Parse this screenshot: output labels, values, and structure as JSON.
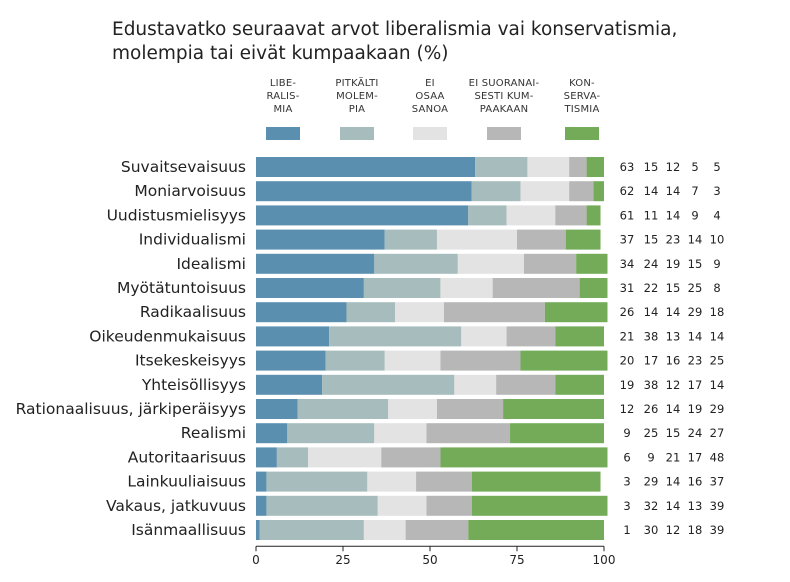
{
  "title": "Edustavatko seuraavat arvot liberalismia vai konservatismia, molempia tai eivät kumpaakaan (%)",
  "colors": [
    "#5b8fb0",
    "#a7bcbc",
    "#e3e3e3",
    "#b7b7b7",
    "#73ab58"
  ],
  "chart_data": {
    "type": "bar",
    "orientation": "horizontal",
    "stacked": true,
    "title": "Edustavatko seuraavat arvot liberalismia vai konservatismia, molempia tai eivät kumpaakaan (%)",
    "categories": [
      "Suvaitsevaisuus",
      "Moniarvoisuus",
      "Uudistusmielisyys",
      "Individualismi",
      "Idealismi",
      "Myötätuntoisuus",
      "Radikaalisuus",
      "Oikeudenmukaisuus",
      "Itsekeskeisyys",
      "Yhteisöllisyys",
      "Rationaalisuus, järkiperäisyys",
      "Realismi",
      "Autoritaarisuus",
      "Lainkuuliaisuus",
      "Vakaus, jatkuvuus",
      "Isänmaallisuus"
    ],
    "series": [
      {
        "name": "LIBE-\nRALIS-\nMIA",
        "values": [
          63,
          62,
          61,
          37,
          34,
          31,
          26,
          21,
          20,
          19,
          12,
          9,
          6,
          3,
          3,
          1
        ]
      },
      {
        "name": "PITKÄLTI\nMOLEM-\nPIA",
        "values": [
          15,
          14,
          11,
          15,
          24,
          22,
          14,
          38,
          17,
          38,
          26,
          25,
          9,
          29,
          32,
          30
        ]
      },
      {
        "name": "EI\nOSAA\nSANOA",
        "values": [
          12,
          14,
          14,
          23,
          19,
          15,
          14,
          13,
          16,
          12,
          14,
          15,
          21,
          14,
          14,
          12
        ]
      },
      {
        "name": "EI SUORANAI-\nSESTI KUM-\nPAAKAAN",
        "values": [
          5,
          7,
          9,
          14,
          15,
          25,
          29,
          14,
          23,
          17,
          19,
          24,
          17,
          16,
          13,
          18
        ]
      },
      {
        "name": "KON-\nSERVA-\nTISMIA",
        "values": [
          5,
          3,
          4,
          10,
          9,
          8,
          18,
          14,
          25,
          14,
          29,
          27,
          48,
          37,
          39,
          39
        ]
      }
    ],
    "xlim": [
      0,
      100
    ],
    "xticks": [
      0,
      25,
      50,
      75,
      100
    ],
    "legend_position": "top"
  }
}
